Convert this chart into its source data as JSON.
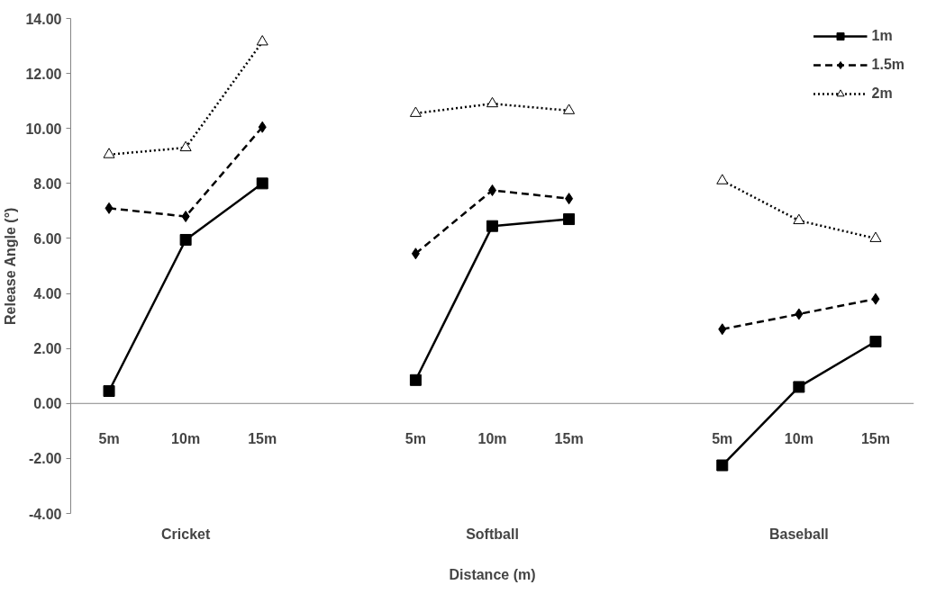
{
  "chart_data": {
    "type": "line",
    "xlabel": "Distance (m)",
    "ylabel": "Release Angle (°)",
    "categories": [
      "5m",
      "10m",
      "15m",
      null,
      "5m",
      "10m",
      "15m",
      null,
      "5m",
      "10m",
      "15m"
    ],
    "annotations": [
      "Cricket",
      "Softball",
      "Baseball"
    ],
    "series": [
      {
        "name": "1m",
        "color": "#000000",
        "marker": "square",
        "line_style": "solid",
        "values": [
          0.45,
          5.95,
          8.0,
          null,
          0.85,
          6.45,
          6.7,
          null,
          -2.25,
          0.6,
          2.25
        ]
      },
      {
        "name": "1.5m",
        "color": "#000000",
        "marker": "diamond",
        "line_style": "dashed",
        "values": [
          7.1,
          6.8,
          10.05,
          null,
          5.45,
          7.75,
          7.45,
          null,
          2.7,
          3.25,
          3.8
        ]
      },
      {
        "name": "2m",
        "color": "#000000",
        "marker": "triangle",
        "line_style": "dotted",
        "values": [
          9.05,
          9.3,
          13.15,
          null,
          10.55,
          10.9,
          10.65,
          null,
          8.1,
          6.65,
          6.0
        ]
      }
    ],
    "ylim": [
      -4,
      14
    ],
    "yticks": [
      {
        "value": -4,
        "label": "-4.00"
      },
      {
        "value": -2,
        "label": "-2.00"
      },
      {
        "value": 0,
        "label": "0.00"
      },
      {
        "value": 2,
        "label": "2.00"
      },
      {
        "value": 4,
        "label": "4.00"
      },
      {
        "value": 6,
        "label": "6.00"
      },
      {
        "value": 8,
        "label": "8.00"
      },
      {
        "value": 10,
        "label": "10.00"
      },
      {
        "value": 12,
        "label": "12.00"
      },
      {
        "value": 14,
        "label": "14.00"
      }
    ],
    "grid": false,
    "legend": "top right"
  }
}
